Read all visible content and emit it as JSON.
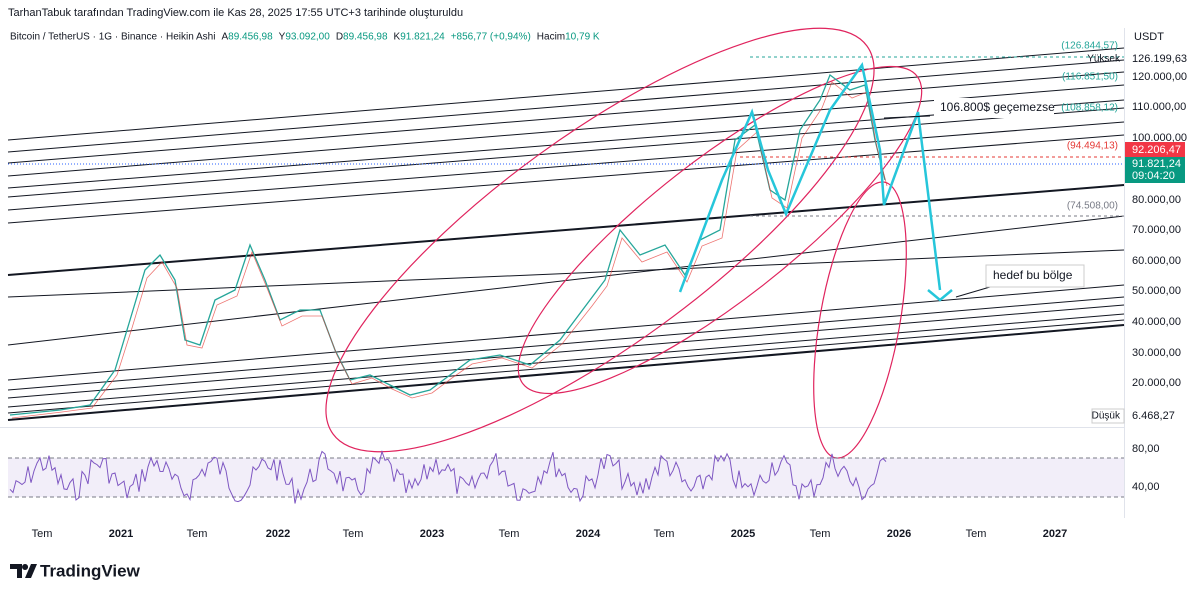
{
  "header": {
    "credit": "TarhanTabuk tarafından TradingView.com ile Kas 28, 2025 17:55 UTC+3 tarihinde oluşturuldu"
  },
  "legend": {
    "symbol": "Bitcoin / TetherUS · 1G · Binance · Heikin Ashi",
    "open_label": "A",
    "open": "89.456,98",
    "high_label": "Y",
    "high": "93.092,00",
    "low_label": "D",
    "low": "89.456,98",
    "close_label": "K",
    "close": "91.821,24",
    "change": "+856,77 (+0,94%)",
    "volume_label": "Hacim",
    "volume": "10,79 K"
  },
  "price_axis": {
    "currency": "USDT",
    "labels": [
      "120.000,00",
      "110.000,00",
      "100.000,00",
      "80.000,00",
      "70.000,00",
      "60.000,00",
      "50.000,00",
      "40.000,00",
      "30.000,00",
      "20.000,00"
    ],
    "high_badge": {
      "label": "Yüksek",
      "value": "126.199,63"
    },
    "red_badge": "92.206,47",
    "last_badge": {
      "value": "91.821,24",
      "countdown": "09:04:20"
    },
    "low_badge": {
      "label": "Düşük",
      "value": "6.468,27"
    }
  },
  "levels": [
    "(126.844,57)",
    "(116.851,50)",
    "(108.858,12)",
    "(94.494,13)",
    "(74.508,00)"
  ],
  "annotations": [
    "106.800$ geçemezse",
    "hedef bu bölge"
  ],
  "rsi_axis": [
    "80,00",
    "40,00"
  ],
  "time_axis": [
    "Tem",
    "2021",
    "Tem",
    "2022",
    "Tem",
    "2023",
    "Tem",
    "2024",
    "Tem",
    "2025",
    "Tem",
    "2026",
    "Tem",
    "2027"
  ],
  "logo": "TradingView"
}
